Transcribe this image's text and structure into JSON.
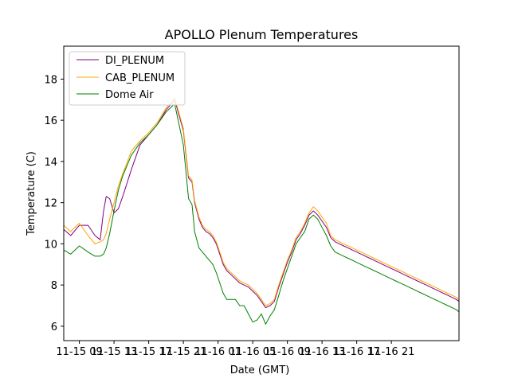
{
  "chart_data": {
    "type": "line",
    "title": "APOLLO Plenum Temperatures",
    "xlabel": "Date (GMT)",
    "ylabel": "Temperature (C)",
    "xlim": [
      3.2,
      48.8
    ],
    "ylim": [
      5.3,
      19.6
    ],
    "yticks": [
      6,
      8,
      10,
      12,
      14,
      16,
      18
    ],
    "xticks": [
      {
        "x": 5,
        "label": "11-15 09"
      },
      {
        "x": 9,
        "label": "11-15 13"
      },
      {
        "x": 13,
        "label": "11-15 17"
      },
      {
        "x": 17,
        "label": "11-15 21"
      },
      {
        "x": 21,
        "label": "11-16 01"
      },
      {
        "x": 25,
        "label": "11-16 05"
      },
      {
        "x": 29,
        "label": "11-16 09"
      },
      {
        "x": 33,
        "label": "11-16 13"
      },
      {
        "x": 37,
        "label": "11-16 17"
      },
      {
        "x": 41,
        "label": "11-16 21"
      }
    ],
    "legend_position": "top-left",
    "series": [
      {
        "name": "DI_PLENUM",
        "color": "#800080",
        "x": [
          3.2,
          4.0,
          5.0,
          6.0,
          6.8,
          7.4,
          7.8,
          8.1,
          8.5,
          9.0,
          9.5,
          10.0,
          11.0,
          12.0,
          13.0,
          14.0,
          15.0,
          16.0,
          17.0,
          17.6,
          18.0,
          18.3,
          18.8,
          19.2,
          19.6,
          20.0,
          20.4,
          20.8,
          21.2,
          21.6,
          22.0,
          22.5,
          23.0,
          23.5,
          24.0,
          24.5,
          25.0,
          25.5,
          26.0,
          26.5,
          27.0,
          27.5,
          28.0,
          28.5,
          29.0,
          29.5,
          30.0,
          30.5,
          31.0,
          31.5,
          32.0,
          32.5,
          33.0,
          33.5,
          34.0,
          34.5,
          35.0,
          35.5,
          36.0,
          36.5,
          37.0,
          37.5,
          38.0,
          38.5,
          39.0,
          39.5,
          40.0,
          40.5,
          41.0,
          41.5,
          42.0,
          42.5,
          43.0,
          43.5,
          44.0,
          44.5,
          45.0,
          45.5,
          46.0,
          46.5,
          47.0,
          47.5,
          48.0,
          48.5,
          48.8
        ],
        "values": [
          10.7,
          10.4,
          10.9,
          10.9,
          10.4,
          10.2,
          11.6,
          12.3,
          12.2,
          11.5,
          11.7,
          12.3,
          13.6,
          14.8,
          15.3,
          15.8,
          16.5,
          17.0,
          15.5,
          13.2,
          13.0,
          12.0,
          11.2,
          10.8,
          10.6,
          10.5,
          10.3,
          10.0,
          9.5,
          9.0,
          8.7,
          8.5,
          8.3,
          8.1,
          8.0,
          7.9,
          7.7,
          7.5,
          7.2,
          6.9,
          7.0,
          7.2,
          7.9,
          8.5,
          9.1,
          9.6,
          10.2,
          10.5,
          10.9,
          11.4,
          11.6,
          11.4,
          11.1,
          10.8,
          10.3,
          10.1,
          10.0,
          9.9,
          9.8,
          9.7,
          9.6,
          9.5,
          9.4,
          9.3,
          9.2,
          9.1,
          9.0,
          8.9,
          8.8,
          8.7,
          8.6,
          8.5,
          8.4,
          8.3,
          8.2,
          8.1,
          8.0,
          7.9,
          7.8,
          7.7,
          7.6,
          7.5,
          7.4,
          7.3,
          7.2
        ]
      },
      {
        "name": "CAB_PLENUM",
        "color": "#ffa500",
        "x": [
          3.2,
          4.0,
          5.0,
          6.0,
          6.8,
          7.4,
          7.8,
          8.1,
          8.5,
          9.0,
          9.5,
          10.0,
          11.0,
          12.0,
          13.0,
          14.0,
          15.0,
          16.0,
          17.0,
          17.6,
          18.0,
          18.3,
          18.8,
          19.2,
          19.6,
          20.0,
          20.4,
          20.8,
          21.2,
          21.6,
          22.0,
          22.5,
          23.0,
          23.5,
          24.0,
          24.5,
          25.0,
          25.5,
          26.0,
          26.5,
          27.0,
          27.5,
          28.0,
          28.5,
          29.0,
          29.5,
          30.0,
          30.5,
          31.0,
          31.5,
          32.0,
          32.5,
          33.0,
          33.5,
          34.0,
          34.5,
          35.0,
          35.5,
          36.0,
          36.5,
          37.0,
          37.5,
          38.0,
          38.5,
          39.0,
          39.5,
          40.0,
          40.5,
          41.0,
          41.5,
          42.0,
          42.5,
          43.0,
          43.5,
          44.0,
          44.5,
          45.0,
          45.5,
          46.0,
          46.5,
          47.0,
          47.5,
          48.0,
          48.5,
          48.8
        ],
        "values": [
          10.9,
          10.6,
          11.0,
          10.4,
          10.0,
          10.1,
          10.2,
          10.5,
          11.2,
          12.0,
          12.8,
          13.4,
          14.5,
          15.0,
          15.4,
          15.9,
          16.6,
          17.1,
          15.6,
          13.3,
          13.1,
          12.1,
          11.3,
          10.9,
          10.7,
          10.6,
          10.4,
          10.1,
          9.6,
          9.1,
          8.8,
          8.6,
          8.4,
          8.2,
          8.1,
          8.0,
          7.8,
          7.6,
          7.3,
          7.0,
          7.1,
          7.3,
          8.0,
          8.6,
          9.2,
          9.7,
          10.3,
          10.6,
          11.0,
          11.5,
          11.8,
          11.6,
          11.3,
          11.0,
          10.4,
          10.2,
          10.1,
          10.0,
          9.9,
          9.8,
          9.7,
          9.6,
          9.5,
          9.4,
          9.3,
          9.2,
          9.1,
          9.0,
          8.9,
          8.8,
          8.7,
          8.6,
          8.5,
          8.4,
          8.3,
          8.2,
          8.1,
          8.0,
          7.9,
          7.8,
          7.7,
          7.6,
          7.5,
          7.4,
          7.3
        ]
      },
      {
        "name": "Dome Air",
        "color": "#008000",
        "x": [
          3.2,
          4.0,
          5.0,
          6.0,
          6.8,
          7.4,
          7.8,
          8.1,
          8.5,
          9.0,
          9.5,
          10.0,
          11.0,
          12.0,
          13.0,
          14.0,
          15.0,
          16.0,
          17.0,
          17.6,
          18.0,
          18.3,
          18.8,
          19.2,
          19.6,
          20.0,
          20.4,
          20.8,
          21.2,
          21.6,
          22.0,
          22.5,
          23.0,
          23.5,
          24.0,
          24.5,
          25.0,
          25.5,
          26.0,
          26.5,
          27.0,
          27.5,
          28.0,
          28.5,
          29.0,
          29.5,
          30.0,
          30.5,
          31.0,
          31.5,
          32.0,
          32.5,
          33.0,
          33.5,
          34.0,
          34.5,
          35.0,
          35.5,
          36.0,
          36.5,
          37.0,
          37.5,
          38.0,
          38.5,
          39.0,
          39.5,
          40.0,
          40.5,
          41.0,
          41.5,
          42.0,
          42.5,
          43.0,
          43.5,
          44.0,
          44.5,
          45.0,
          45.5,
          46.0,
          46.5,
          47.0,
          47.5,
          48.0,
          48.5,
          48.8
        ],
        "values": [
          9.7,
          9.5,
          9.9,
          9.6,
          9.4,
          9.4,
          9.5,
          9.8,
          10.5,
          11.6,
          12.6,
          13.3,
          14.3,
          14.9,
          15.3,
          15.8,
          16.4,
          16.8,
          14.8,
          12.2,
          11.9,
          10.6,
          9.8,
          9.6,
          9.4,
          9.2,
          9.0,
          8.6,
          8.1,
          7.6,
          7.3,
          7.3,
          7.3,
          7.0,
          7.0,
          6.6,
          6.2,
          6.3,
          6.6,
          6.1,
          6.5,
          6.8,
          7.5,
          8.2,
          8.8,
          9.4,
          10.0,
          10.3,
          10.6,
          11.2,
          11.4,
          11.2,
          10.8,
          10.4,
          9.9,
          9.6,
          9.5,
          9.4,
          9.3,
          9.2,
          9.1,
          9.0,
          8.9,
          8.8,
          8.7,
          8.6,
          8.5,
          8.4,
          8.3,
          8.2,
          8.1,
          8.0,
          7.9,
          7.8,
          7.7,
          7.6,
          7.5,
          7.4,
          7.3,
          7.2,
          7.1,
          7.0,
          6.9,
          6.8,
          6.7
        ]
      }
    ]
  }
}
